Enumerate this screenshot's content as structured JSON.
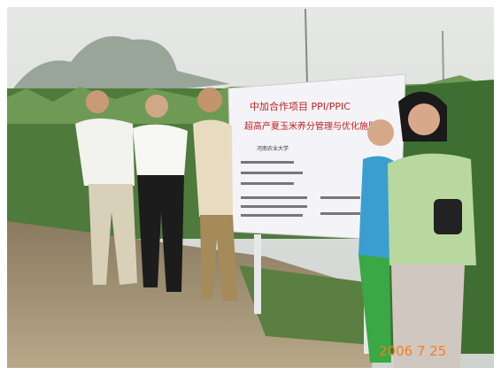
{
  "sign": {
    "title_line1": "中加合作项目 PPI/PPIC",
    "title_line2": "超高产夏玉米养分管理与优化施肥",
    "affiliation": "河南农业大学"
  },
  "photo": {
    "date_stamp": "2006 7 25"
  }
}
